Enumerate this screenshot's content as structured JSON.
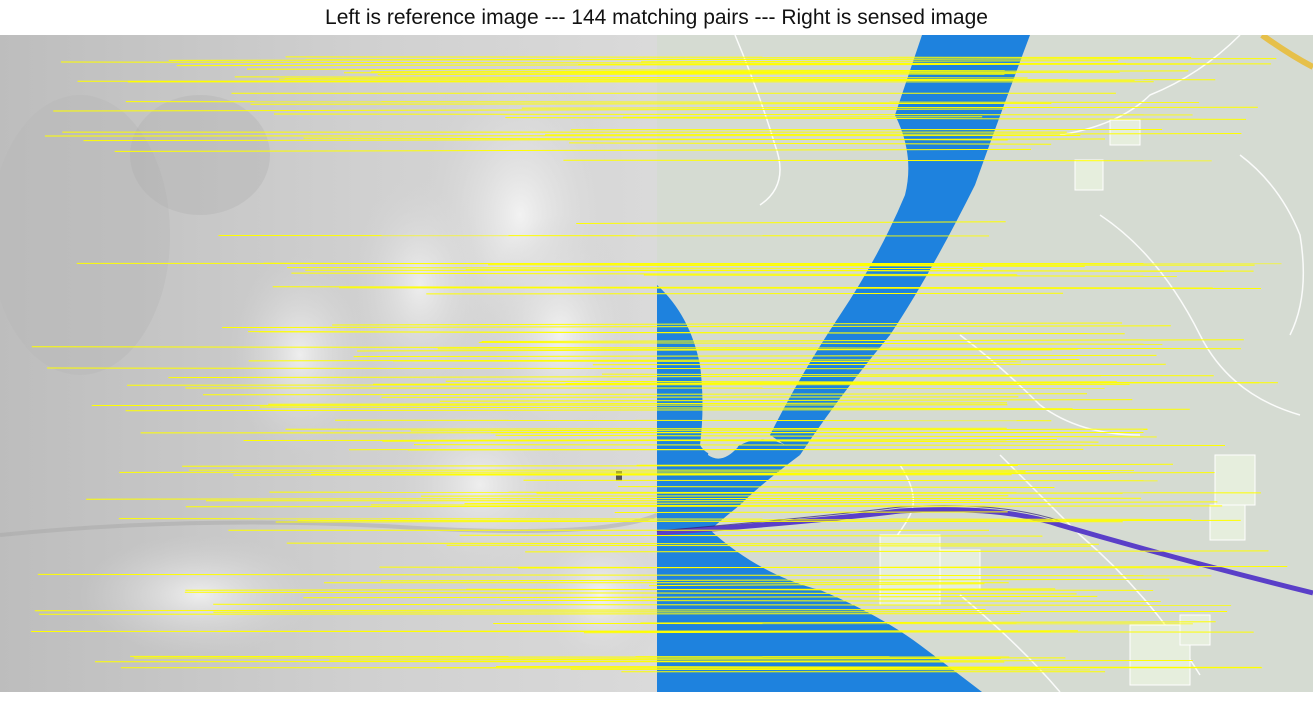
{
  "title": "Left is reference image --- 144 matching pairs --- Right is sensed image",
  "panels": {
    "left": {
      "kind": "grayscale elevation / DEM relief",
      "base_color": "#c8c8c8"
    },
    "right": {
      "kind": "map",
      "land_color": "#d5dbd2",
      "water_color": "#1e82de",
      "road_color": "#5a3fc8",
      "highway_color": "#e6c04a"
    }
  },
  "matches": {
    "count": 144,
    "line_color": "#ffff00"
  }
}
